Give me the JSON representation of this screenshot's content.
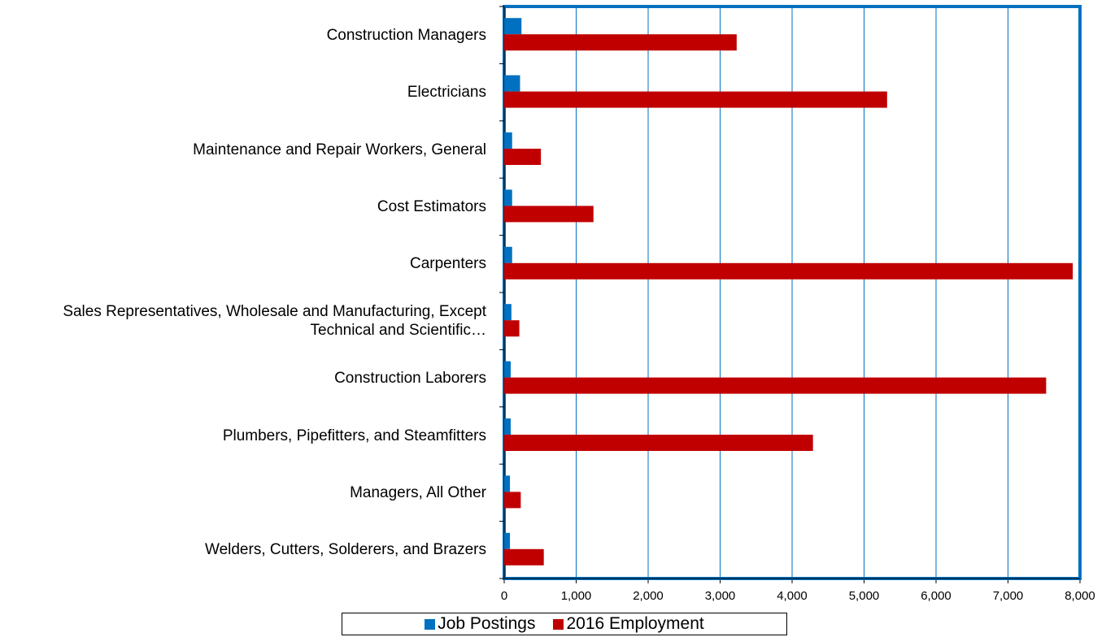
{
  "chart_data": {
    "type": "bar",
    "orientation": "horizontal",
    "categories": [
      "Construction Managers",
      "Electricians",
      "Maintenance and Repair Workers, General",
      "Cost Estimators",
      "Carpenters",
      "Sales Representatives, Wholesale and Manufacturing, Except Technical and Scientific…",
      "Construction Laborers",
      "Plumbers, Pipefitters, and Steamfitters",
      "Managers, All Other",
      "Welders, Cutters, Solderers, and Brazers"
    ],
    "series": [
      {
        "name": "Job Postings",
        "color": "#0070c0",
        "values": [
          240,
          220,
          110,
          110,
          110,
          100,
          90,
          90,
          80,
          80
        ]
      },
      {
        "name": "2016 Employment",
        "color": "#c00000",
        "values": [
          3230,
          5320,
          510,
          1240,
          7900,
          210,
          7530,
          4290,
          230,
          550
        ]
      }
    ],
    "xlim": [
      0,
      8000
    ],
    "xticks": [
      0,
      {
        "value": 1000,
        "label": "1,000"
      },
      {
        "value": 2000,
        "label": "2,000"
      },
      {
        "value": 3000,
        "label": "3,000"
      },
      {
        "value": 4000,
        "label": "4,000"
      },
      {
        "value": 5000,
        "label": "5,000"
      },
      {
        "value": 6000,
        "label": "6,000"
      },
      {
        "value": 7000,
        "label": "7,000"
      },
      {
        "value": 8000,
        "label": "8,000"
      }
    ],
    "grid": true,
    "legend": "bottom"
  }
}
